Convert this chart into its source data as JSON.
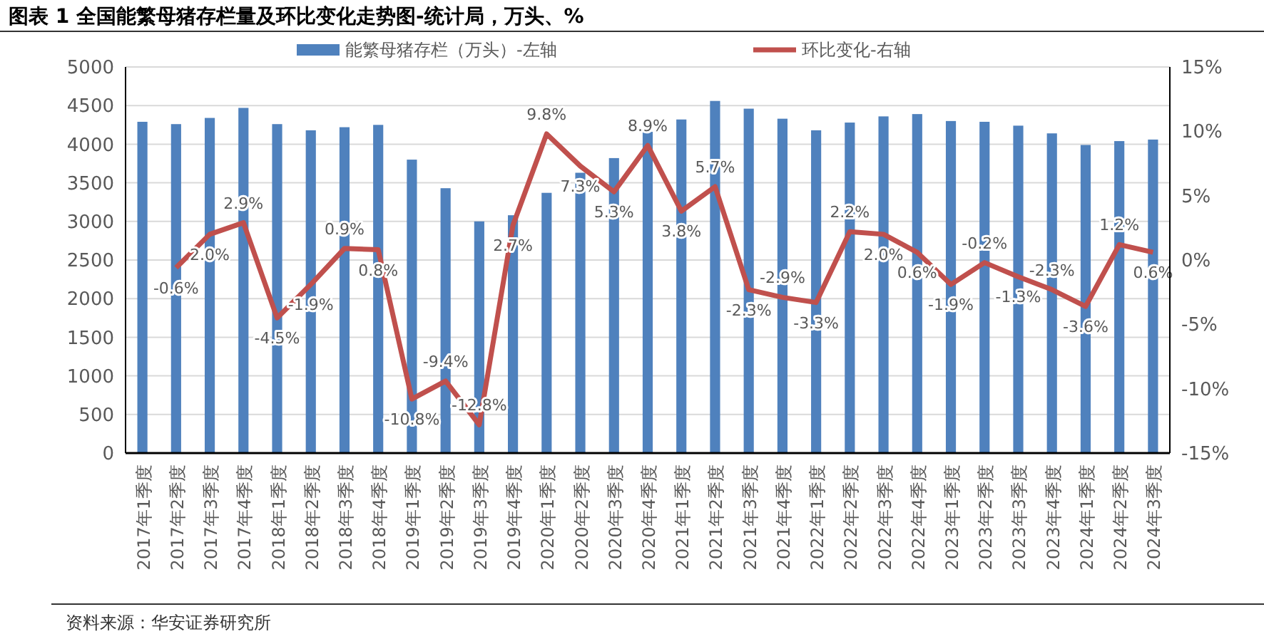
{
  "chart_data": {
    "type": "bar",
    "title": "图表 1 全国能繁母猪存栏量及环比变化走势图-统计局，万头、%",
    "categories": [
      "2017年1季度",
      "2017年2季度",
      "2017年3季度",
      "2017年4季度",
      "2018年1季度",
      "2018年2季度",
      "2018年3季度",
      "2018年4季度",
      "2019年1季度",
      "2019年2季度",
      "2019年3季度",
      "2019年4季度",
      "2020年1季度",
      "2020年2季度",
      "2020年3季度",
      "2020年4季度",
      "2021年1季度",
      "2021年2季度",
      "2021年3季度",
      "2021年4季度",
      "2022年1季度",
      "2022年2季度",
      "2022年3季度",
      "2022年4季度",
      "2023年1季度",
      "2023年2季度",
      "2023年3季度",
      "2023年4季度",
      "2024年1季度",
      "2024年2季度",
      "2024年3季度"
    ],
    "series": [
      {
        "name": "能繁母猪存栏（万头）-左轴",
        "color": "#4f81bd",
        "values": [
          4290,
          4260,
          4340,
          4470,
          4260,
          4180,
          4220,
          4250,
          3800,
          3430,
          3000,
          3080,
          3370,
          3630,
          3820,
          4160,
          4320,
          4560,
          4460,
          4330,
          4180,
          4280,
          4360,
          4390,
          4300,
          4290,
          4240,
          4140,
          3990,
          4040,
          4060
        ]
      },
      {
        "name": "环比变化-右轴",
        "type": "line",
        "axis": "y2",
        "color": "#c0504d",
        "values": [
          null,
          -0.6,
          2.0,
          2.9,
          -4.5,
          -1.9,
          0.9,
          0.8,
          -10.8,
          -9.4,
          -12.8,
          2.7,
          9.8,
          7.3,
          5.3,
          8.9,
          3.8,
          5.7,
          -2.3,
          -2.9,
          -3.3,
          2.2,
          2.0,
          0.6,
          -1.9,
          -0.2,
          -1.3,
          -2.3,
          -3.6,
          1.2,
          0.6
        ],
        "value_labels": [
          null,
          "-0.6%",
          "2.0%",
          "2.9%",
          "-4.5%",
          "-1.9%",
          "0.9%",
          "0.8%",
          "-10.8%",
          "-9.4%",
          "-12.8%",
          "2.7%",
          "9.8%",
          "7.3%",
          "5.3%",
          "8.9%",
          "3.8%",
          "5.7%",
          "-2.3%",
          "-2.9%",
          "-3.3%",
          "2.2%",
          "2.0%",
          "0.6%",
          "-1.9%",
          "-0.2%",
          "-1.3%",
          "-2.3%",
          "-3.6%",
          "1.2%",
          "0.6%"
        ]
      }
    ],
    "ylim": [
      0,
      5000
    ],
    "yticks": [
      0,
      500,
      1000,
      1500,
      2000,
      2500,
      3000,
      3500,
      4000,
      4500,
      5000
    ],
    "y2lim": [
      -15,
      15
    ],
    "y2ticks": [
      {
        "value": -15,
        "label": "-15%"
      },
      {
        "value": -10,
        "label": "-10%"
      },
      {
        "value": -5,
        "label": "-5%"
      },
      {
        "value": 0,
        "label": "0%"
      },
      {
        "value": 5,
        "label": "5%"
      },
      {
        "value": 10,
        "label": "10%"
      },
      {
        "value": 15,
        "label": "15%"
      }
    ],
    "grid": "y",
    "legend": "top",
    "marker": "none",
    "line_style": "solid",
    "annotations": [
      "资料来源：华安证券研究所"
    ]
  }
}
